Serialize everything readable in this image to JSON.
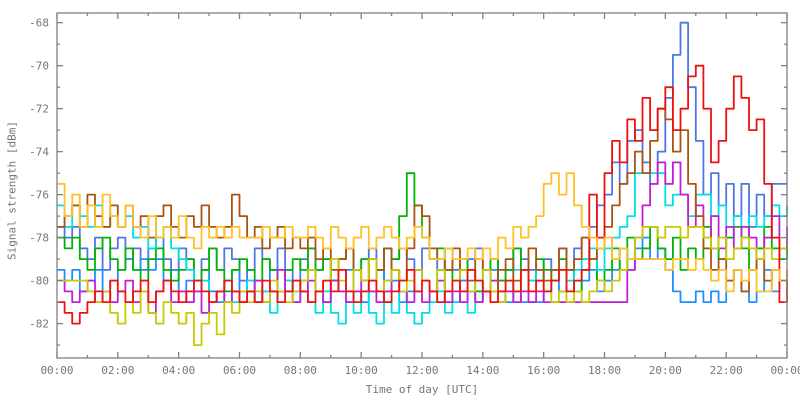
{
  "chart": {
    "ylabel": "Signal strength [dBm]",
    "xlabel": "Time of day [UTC]",
    "background": "#ffffff",
    "frame_color": "#808080",
    "text_color": "#767676"
  },
  "chart_data": {
    "type": "line",
    "title": "",
    "xlabel": "Time of day [UTC]",
    "ylabel": "Signal strength [dBm]",
    "x_unit": "hours",
    "x_start": 0,
    "x_step": 0.25,
    "xlim": [
      0,
      24
    ],
    "ylim": [
      -83.6,
      -67.55
    ],
    "grid": false,
    "legend": "none",
    "style": "steps",
    "x_major_tick_hours": [
      0,
      2,
      4,
      6,
      8,
      10,
      12,
      14,
      16,
      18,
      20,
      22,
      24
    ],
    "x_tick_labels": [
      "00:00",
      "02:00",
      "04:00",
      "06:00",
      "08:00",
      "10:00",
      "12:00",
      "14:00",
      "16:00",
      "18:00",
      "20:00",
      "22:00",
      "00:00"
    ],
    "x_minor_tick_hours": [
      1,
      3,
      5,
      7,
      9,
      11,
      13,
      15,
      17,
      19,
      21,
      23
    ],
    "y_major_ticks": [
      -68,
      -70,
      -72,
      -74,
      -76,
      -78,
      -80,
      -82
    ],
    "y_minor_ticks": [
      -69,
      -71,
      -73,
      -75,
      -77,
      -79,
      -81,
      -83
    ],
    "series": [
      {
        "name": "cornflower-blue",
        "color": "#4f77e4",
        "values": [
          -77.5,
          -78,
          -77.5,
          -78.5,
          -79,
          -78,
          -79.5,
          -78.5,
          -78,
          -79,
          -78.5,
          -79.5,
          -78.5,
          -78,
          -79,
          -79.5,
          -78.5,
          -79,
          -80,
          -79,
          -78.5,
          -79.5,
          -78.5,
          -79,
          -80,
          -79.5,
          -78.5,
          -79,
          -79.5,
          -78.5,
          -79.5,
          -80,
          -79,
          -78.5,
          -79.5,
          -79,
          -80,
          -79,
          -78.5,
          -79.5,
          -79,
          -78.5,
          -79.5,
          -80,
          -79,
          -78.5,
          -79,
          -79.5,
          -78.5,
          -79,
          -79.5,
          -78.5,
          -79.5,
          -80,
          -79,
          -78.5,
          -79.5,
          -79,
          -80,
          -79.5,
          -78.5,
          -79,
          -79.5,
          -80,
          -79,
          -79.5,
          -78.5,
          -79.5,
          -78.5,
          -78,
          -77.5,
          -76.5,
          -76,
          -74.5,
          -75.5,
          -73.5,
          -73,
          -74.5,
          -75.5,
          -74,
          -71.5,
          -69.5,
          -68,
          -71,
          -73.5,
          -76,
          -75,
          -76.5,
          -75.5,
          -77,
          -75.5,
          -77.5,
          -76,
          -77,
          -75.5,
          -75.5,
          -75.5
        ]
      },
      {
        "name": "azure-blue",
        "color": "#1e90ff",
        "values": [
          -79.5,
          -80,
          -79.5,
          -80.5,
          -80,
          -79.5,
          -80.5,
          -80,
          -79.5,
          -79,
          -79.5,
          -79,
          -79.5,
          -79,
          -80,
          -79.5,
          -80.5,
          -80,
          -80.5,
          -79.5,
          -80.5,
          -81,
          -80,
          -79.5,
          -80.5,
          -80,
          -81,
          -80.5,
          -79.5,
          -80.5,
          -80,
          -80.5,
          -80,
          -79.5,
          -80.5,
          -81,
          -80,
          -80.5,
          -79.5,
          -80.5,
          -81,
          -80.5,
          -79.5,
          -80.5,
          -80,
          -81,
          -80.5,
          -79.5,
          -80,
          -80.5,
          -79.5,
          -80.5,
          -81,
          -80,
          -80.5,
          -81,
          -80.5,
          -79.5,
          -80.5,
          -81,
          -80.5,
          -81,
          -81,
          -81,
          -80.5,
          -80,
          -80.5,
          -79.5,
          -80.5,
          -80,
          -79.5,
          -80.5,
          -80,
          -79.5,
          -78.5,
          -79.5,
          -78.5,
          -78,
          -79,
          -78.5,
          -79.5,
          -80.5,
          -81,
          -81,
          -80.5,
          -81,
          -80.5,
          -81,
          -80,
          -79.5,
          -80.5,
          -81,
          -80.5,
          -79.5,
          -80.5,
          -80,
          -80
        ]
      },
      {
        "name": "green",
        "color": "#00b406",
        "values": [
          -78,
          -78.5,
          -78,
          -79,
          -79.5,
          -78.5,
          -78,
          -79,
          -79.5,
          -78.5,
          -79.5,
          -80,
          -79,
          -78.5,
          -79.5,
          -80,
          -79.5,
          -79,
          -80,
          -79.5,
          -78.5,
          -79.5,
          -80.5,
          -79.5,
          -79,
          -79.5,
          -80,
          -79,
          -79.5,
          -80.5,
          -79.5,
          -79,
          -79.5,
          -78.5,
          -79.5,
          -79,
          -80,
          -79,
          -78.5,
          -79.5,
          -79,
          -80,
          -79.5,
          -78.5,
          -79,
          -77,
          -75,
          -76.5,
          -78,
          -79,
          -78.5,
          -79.5,
          -80,
          -79,
          -79.5,
          -80.5,
          -79.5,
          -79,
          -80,
          -79.5,
          -78.5,
          -79.5,
          -80,
          -79,
          -79.5,
          -80,
          -79,
          -79.5,
          -80.5,
          -79.5,
          -79,
          -80,
          -79.5,
          -78.5,
          -79.5,
          -78,
          -79,
          -78.5,
          -77.5,
          -78.5,
          -79,
          -78,
          -79.5,
          -78.5,
          -79,
          -77.5,
          -78.5,
          -79,
          -78,
          -77.5,
          -78.5,
          -79.5,
          -78.5,
          -77.5,
          -78.5,
          -79,
          -78.5
        ]
      },
      {
        "name": "cyan",
        "color": "#00dfe6",
        "values": [
          -76.5,
          -77.5,
          -76.5,
          -77,
          -77.5,
          -76.5,
          -77.5,
          -77,
          -77.5,
          -77,
          -78,
          -77.5,
          -78.5,
          -78,
          -77.5,
          -78.5,
          -79,
          -79.5,
          -80.5,
          -80,
          -81,
          -80.5,
          -80,
          -81,
          -80.5,
          -80,
          -81,
          -80.5,
          -81.5,
          -80.5,
          -80,
          -81,
          -80.5,
          -81,
          -81.5,
          -80.5,
          -81.5,
          -82,
          -81,
          -81.5,
          -80.5,
          -81.5,
          -82,
          -81,
          -81.5,
          -80.5,
          -81.5,
          -82,
          -81.5,
          -81,
          -80.5,
          -81.5,
          -81,
          -80.5,
          -81.5,
          -81,
          -80.5,
          -80,
          -81,
          -80.5,
          -79.5,
          -80.5,
          -80,
          -79.5,
          -80.5,
          -80,
          -79.5,
          -80,
          -79.5,
          -79,
          -78.5,
          -79.5,
          -78.5,
          -78,
          -77.5,
          -77,
          -75,
          -75,
          -75,
          -75,
          -76.5,
          -76,
          -76,
          -77,
          -76,
          -76,
          -77,
          -76.5,
          -77.5,
          -77,
          -78,
          -77,
          -77.5,
          -77,
          -76.5,
          -77,
          -76.5
        ]
      },
      {
        "name": "magenta",
        "color": "#c11fd6",
        "values": [
          -80,
          -80.5,
          -81,
          -80.5,
          -80,
          -81,
          -80.5,
          -81,
          -80.5,
          -80,
          -81,
          -80.5,
          -81.5,
          -80.5,
          -80,
          -81,
          -80.5,
          -81,
          -80.5,
          -81.5,
          -81,
          -80.5,
          -81,
          -80.5,
          -81,
          -80.5,
          -80,
          -81,
          -80.5,
          -79.5,
          -80.5,
          -81,
          -80.5,
          -80,
          -80.5,
          -81,
          -80,
          -80.5,
          -81,
          -80.5,
          -80,
          -80.5,
          -81,
          -80.5,
          -79.5,
          -80.5,
          -81,
          -80.5,
          -81,
          -80.5,
          -80,
          -81,
          -80.5,
          -81,
          -80.5,
          -81,
          -80.5,
          -80,
          -81,
          -80.5,
          -81,
          -80.5,
          -81,
          -80.5,
          -81,
          -81,
          -81,
          -81,
          -81,
          -81,
          -81,
          -81,
          -81,
          -81,
          -81,
          -79.5,
          -78,
          -76.5,
          -75.5,
          -74.5,
          -75.5,
          -74.5,
          -76,
          -77.5,
          -76.5,
          -78,
          -77,
          -78.5,
          -77.5,
          -78.5,
          -77.5,
          -78,
          -79,
          -78,
          -77,
          -78.5,
          -77.5
        ]
      },
      {
        "name": "brown",
        "color": "#ab5411",
        "values": [
          -77.5,
          -77,
          -76.5,
          -77.5,
          -76,
          -77,
          -77.5,
          -76.5,
          -77.5,
          -76.5,
          -77.5,
          -77,
          -78,
          -77,
          -76.5,
          -77.5,
          -78,
          -77,
          -77.5,
          -76.5,
          -77.5,
          -78,
          -77.5,
          -76,
          -77,
          -78,
          -77.5,
          -78.5,
          -78,
          -77.5,
          -78.5,
          -78,
          -78.5,
          -78,
          -79,
          -78.5,
          -79.5,
          -79,
          -78.5,
          -79.5,
          -80,
          -79,
          -79.5,
          -78.5,
          -79.5,
          -80,
          -78.5,
          -76.5,
          -77,
          -78.5,
          -79,
          -79.5,
          -78.5,
          -79.5,
          -80,
          -79,
          -79.5,
          -80.5,
          -79.5,
          -79,
          -80,
          -79.5,
          -78.5,
          -79.5,
          -80,
          -79.5,
          -78.5,
          -79.5,
          -79,
          -78,
          -79,
          -78.5,
          -77.5,
          -76.5,
          -75.5,
          -75,
          -74,
          -75,
          -73.5,
          -72,
          -72.5,
          -74,
          -73,
          -75.5,
          -77,
          -78.5,
          -79.5,
          -79,
          -80,
          -79.5,
          -80.5,
          -79.5,
          -79,
          -80,
          -79.5,
          -80,
          -79.5
        ]
      },
      {
        "name": "olive",
        "color": "#c9c900",
        "values": [
          -80,
          -80,
          -80,
          -80,
          -80.5,
          -81,
          -80.5,
          -81.5,
          -82,
          -81,
          -81.5,
          -80.5,
          -81.5,
          -82,
          -81,
          -81.5,
          -82,
          -81.5,
          -83,
          -82,
          -81.5,
          -82.5,
          -81,
          -81.5,
          -80.5,
          -81,
          -80.5,
          -81,
          -80,
          -80.5,
          -81,
          -80.5,
          -80,
          -79.5,
          -80.5,
          -80,
          -79,
          -80,
          -80.5,
          -79.5,
          -80,
          -79,
          -80.5,
          -80,
          -79.5,
          -80.5,
          -80,
          -79.5,
          -80,
          -80.5,
          -79.5,
          -80.5,
          -80,
          -79.5,
          -80.5,
          -80,
          -79.5,
          -80.5,
          -81,
          -80,
          -80.5,
          -79.5,
          -80.5,
          -80,
          -80.5,
          -81,
          -80.5,
          -81,
          -80.5,
          -81,
          -80.5,
          -80,
          -80.5,
          -80,
          -79.5,
          -79,
          -78,
          -77.5,
          -77.5,
          -78,
          -77.5,
          -77.5,
          -78,
          -77.5,
          -77.5,
          -78,
          -78.5,
          -78,
          -79,
          -78.5,
          -78,
          -78.5,
          -79,
          -78.5,
          -79,
          -78.5,
          -78.5
        ]
      },
      {
        "name": "red",
        "color": "#ee1111",
        "values": [
          -81,
          -81.5,
          -82,
          -81.5,
          -81,
          -80.5,
          -81,
          -80,
          -80.5,
          -81,
          -80.5,
          -80,
          -81,
          -80.5,
          -80,
          -80.5,
          -81,
          -80.5,
          -80,
          -80.5,
          -81,
          -80.5,
          -80,
          -80.5,
          -81,
          -80.5,
          -81,
          -80,
          -80.5,
          -81,
          -80.5,
          -80,
          -80.5,
          -81,
          -80.5,
          -80,
          -80.5,
          -79.5,
          -80.5,
          -81,
          -80.5,
          -80,
          -80.5,
          -81,
          -80.5,
          -80,
          -79.5,
          -80.5,
          -80,
          -80.5,
          -81,
          -80.5,
          -80,
          -80.5,
          -79.5,
          -80,
          -80.5,
          -81,
          -80.5,
          -80,
          -80.5,
          -79.5,
          -80.5,
          -80,
          -80.5,
          -80,
          -79.5,
          -80.5,
          -80,
          -79.5,
          -76,
          -78,
          -75,
          -73.5,
          -74.5,
          -72.5,
          -73.5,
          -71.5,
          -73,
          -72,
          -71,
          -73,
          -72,
          -70.5,
          -70,
          -72,
          -74.5,
          -73.5,
          -72,
          -70.5,
          -71.5,
          -73,
          -72.5,
          -75.5,
          -78,
          -81,
          -80
        ]
      },
      {
        "name": "gold",
        "color": "#ffc125",
        "values": [
          -75.5,
          -77,
          -76,
          -77.5,
          -76.5,
          -77.5,
          -76,
          -77,
          -77.5,
          -76.5,
          -77.5,
          -78,
          -77,
          -78,
          -77.5,
          -78,
          -77,
          -78,
          -78.5,
          -77.5,
          -78,
          -77.5,
          -78,
          -77.5,
          -78,
          -78,
          -78,
          -77.5,
          -78,
          -78,
          -77.5,
          -78,
          -78,
          -77.5,
          -78,
          -78.5,
          -77.5,
          -78,
          -78.5,
          -78,
          -77.5,
          -78.5,
          -78,
          -77.5,
          -78,
          -78.5,
          -78,
          -77.5,
          -78,
          -79,
          -79,
          -78.5,
          -79,
          -79,
          -78.5,
          -79,
          -78.5,
          -79,
          -78,
          -78.5,
          -77.5,
          -78,
          -77.5,
          -77,
          -75.5,
          -75,
          -76,
          -75,
          -76.5,
          -77.5,
          -78,
          -78.5,
          -78,
          -79,
          -78.5,
          -79,
          -79,
          -79,
          -79,
          -79,
          -79.5,
          -79,
          -79,
          -79.5,
          -79,
          -79.5,
          -80,
          -79.5,
          -80.5,
          -79.5,
          -80,
          -79.5,
          -80.5,
          -80.5,
          -79.5,
          -80,
          -79.5
        ]
      }
    ]
  }
}
